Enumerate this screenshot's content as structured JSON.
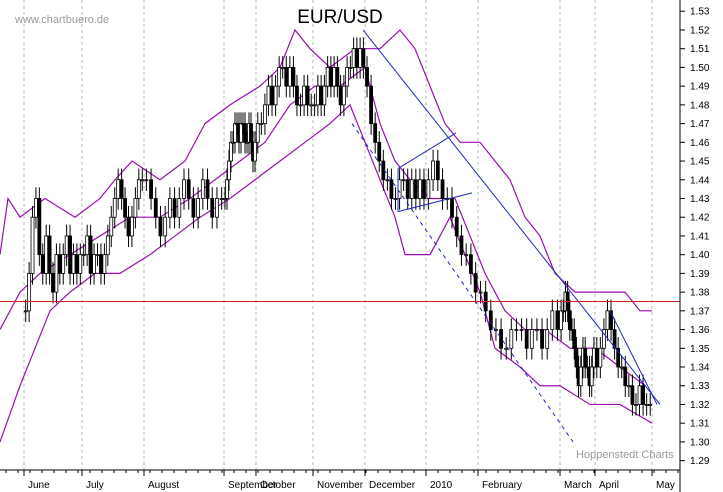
{
  "site_label": "www.chartbuero.de",
  "credit": "Hoppenstedt Charts",
  "chart_data": {
    "type": "candlestick",
    "title": "EUR/USD",
    "x_tick_labels": [
      "June",
      "July",
      "August",
      "September",
      "October",
      "November",
      "December",
      "2010",
      "February",
      "March",
      "April",
      "May"
    ],
    "y_tick_labels": [
      "1.29",
      "1.30",
      "1.31",
      "1.32",
      "1.33",
      "1.34",
      "1.35",
      "1.36",
      "1.37",
      "1.38",
      "1.39",
      "1.40",
      "1.41",
      "1.42",
      "1.43",
      "1.44",
      "1.45",
      "1.46",
      "1.47",
      "1.48",
      "1.49",
      "1.50",
      "1.51",
      "1.52",
      "1.53"
    ],
    "ylim": [
      1.285,
      1.536
    ],
    "grid": "vertical dashed at month boundaries",
    "colors": {
      "price": "#000000",
      "bollinger_bands": "#9a0fb0",
      "trend_lines": "#1f2bb8",
      "horizontal_line": "#d21f1f",
      "grid": "#b8b8b8"
    },
    "horizontal_line": 1.375,
    "months": [
      {
        "label": "June",
        "o": 1.377,
        "c": 1.401,
        "closes": [
          1.37,
          1.39,
          1.42,
          1.43,
          1.4,
          1.39,
          1.41,
          1.39,
          1.38,
          1.4,
          1.39,
          1.4,
          1.41,
          1.39,
          1.4,
          1.39,
          1.4
        ]
      },
      {
        "label": "July",
        "o": 1.401,
        "c": 1.414,
        "closes": [
          1.4,
          1.41,
          1.39,
          1.4,
          1.4,
          1.39,
          1.4,
          1.41,
          1.42,
          1.43,
          1.44,
          1.43,
          1.42,
          1.41,
          1.42,
          1.43,
          1.44,
          1.44
        ]
      },
      {
        "label": "August",
        "o": 1.414,
        "c": 1.432,
        "closes": [
          1.44,
          1.43,
          1.42,
          1.41,
          1.42,
          1.43,
          1.42,
          1.43,
          1.44,
          1.43,
          1.42,
          1.43,
          1.44,
          1.43,
          1.42,
          1.43,
          1.43
        ]
      },
      {
        "label": "September",
        "o": 1.432,
        "c": 1.466,
        "closes": [
          1.43,
          1.44,
          1.45,
          1.46,
          1.46,
          1.47,
          1.47,
          1.46,
          1.47,
          1.47,
          1.46,
          1.46,
          1.47,
          1.46,
          1.45,
          1.46
        ]
      },
      {
        "label": "October",
        "o": 1.466,
        "c": 1.485,
        "closes": [
          1.47,
          1.47,
          1.48,
          1.49,
          1.48,
          1.49,
          1.5,
          1.5,
          1.49,
          1.5,
          1.49,
          1.48,
          1.48,
          1.49,
          1.48,
          1.48
        ]
      },
      {
        "label": "November",
        "o": 1.485,
        "c": 1.5,
        "closes": [
          1.48,
          1.49,
          1.48,
          1.49,
          1.5,
          1.49,
          1.5,
          1.49,
          1.48,
          1.49,
          1.5,
          1.5,
          1.51,
          1.5,
          1.51,
          1.5
        ]
      },
      {
        "label": "December",
        "o": 1.5,
        "c": 1.432,
        "closes": [
          1.49,
          1.47,
          1.46,
          1.45,
          1.44,
          1.44,
          1.43,
          1.43,
          1.44,
          1.44,
          1.43,
          1.44,
          1.43,
          1.44,
          1.43
        ]
      },
      {
        "label": "2010",
        "o": 1.432,
        "c": 1.386,
        "closes": [
          1.44,
          1.45,
          1.44,
          1.43,
          1.43,
          1.42,
          1.41,
          1.4,
          1.4,
          1.39,
          1.38
        ]
      },
      {
        "label": "February",
        "o": 1.386,
        "c": 1.362,
        "closes": [
          1.38,
          1.37,
          1.36,
          1.36,
          1.35,
          1.35,
          1.36,
          1.36,
          1.36,
          1.35,
          1.36,
          1.36,
          1.35,
          1.36,
          1.37,
          1.36
        ]
      },
      {
        "label": "March",
        "o": 1.362,
        "c": 1.349,
        "closes": [
          1.37,
          1.37,
          1.38,
          1.37,
          1.36,
          1.36,
          1.35,
          1.34,
          1.33,
          1.34,
          1.35,
          1.34,
          1.34,
          1.33,
          1.34,
          1.35
        ]
      },
      {
        "label": "April",
        "o": 1.349,
        "c": 1.322,
        "closes": [
          1.34,
          1.35,
          1.36,
          1.37,
          1.36,
          1.35,
          1.34,
          1.34,
          1.33,
          1.33,
          1.32,
          1.32,
          1.33,
          1.32,
          1.32,
          1.32
        ]
      }
    ],
    "upper_band": [
      [
        0,
        1.4
      ],
      [
        8,
        1.43
      ],
      [
        20,
        1.42
      ],
      [
        45,
        1.43
      ],
      [
        75,
        1.42
      ],
      [
        100,
        1.43
      ],
      [
        115,
        1.44
      ],
      [
        132,
        1.45
      ],
      [
        160,
        1.44
      ],
      [
        185,
        1.45
      ],
      [
        205,
        1.47
      ],
      [
        230,
        1.48
      ],
      [
        260,
        1.49
      ],
      [
        280,
        1.5
      ],
      [
        295,
        1.52
      ],
      [
        310,
        1.51
      ],
      [
        330,
        1.5
      ],
      [
        355,
        1.51
      ],
      [
        380,
        1.51
      ],
      [
        400,
        1.52
      ],
      [
        415,
        1.51
      ],
      [
        430,
        1.49
      ],
      [
        445,
        1.47
      ],
      [
        460,
        1.46
      ],
      [
        480,
        1.46
      ],
      [
        495,
        1.45
      ],
      [
        510,
        1.44
      ],
      [
        525,
        1.42
      ],
      [
        540,
        1.41
      ],
      [
        555,
        1.39
      ],
      [
        575,
        1.38
      ],
      [
        600,
        1.38
      ],
      [
        625,
        1.38
      ],
      [
        640,
        1.37
      ],
      [
        652,
        1.37
      ]
    ],
    "lower_band": [
      [
        0,
        1.3
      ],
      [
        20,
        1.33
      ],
      [
        35,
        1.35
      ],
      [
        50,
        1.37
      ],
      [
        70,
        1.38
      ],
      [
        95,
        1.39
      ],
      [
        120,
        1.39
      ],
      [
        150,
        1.4
      ],
      [
        175,
        1.41
      ],
      [
        200,
        1.42
      ],
      [
        230,
        1.43
      ],
      [
        255,
        1.44
      ],
      [
        280,
        1.45
      ],
      [
        305,
        1.46
      ],
      [
        330,
        1.47
      ],
      [
        350,
        1.48
      ],
      [
        365,
        1.46
      ],
      [
        380,
        1.44
      ],
      [
        395,
        1.42
      ],
      [
        405,
        1.4
      ],
      [
        430,
        1.4
      ],
      [
        450,
        1.42
      ],
      [
        465,
        1.4
      ],
      [
        480,
        1.38
      ],
      [
        495,
        1.35
      ],
      [
        520,
        1.34
      ],
      [
        540,
        1.33
      ],
      [
        560,
        1.33
      ],
      [
        590,
        1.32
      ],
      [
        620,
        1.32
      ],
      [
        652,
        1.31
      ]
    ],
    "middle_band": [
      [
        0,
        1.36
      ],
      [
        20,
        1.38
      ],
      [
        40,
        1.39
      ],
      [
        70,
        1.4
      ],
      [
        100,
        1.41
      ],
      [
        130,
        1.42
      ],
      [
        160,
        1.42
      ],
      [
        190,
        1.43
      ],
      [
        215,
        1.44
      ],
      [
        240,
        1.45
      ],
      [
        265,
        1.46
      ],
      [
        290,
        1.48
      ],
      [
        315,
        1.49
      ],
      [
        340,
        1.49
      ],
      [
        365,
        1.5
      ],
      [
        380,
        1.47
      ],
      [
        395,
        1.45
      ],
      [
        410,
        1.44
      ],
      [
        430,
        1.43
      ],
      [
        455,
        1.43
      ],
      [
        470,
        1.41
      ],
      [
        485,
        1.39
      ],
      [
        505,
        1.37
      ],
      [
        525,
        1.36
      ],
      [
        545,
        1.36
      ],
      [
        570,
        1.35
      ],
      [
        595,
        1.35
      ],
      [
        620,
        1.34
      ],
      [
        645,
        1.33
      ]
    ],
    "trend_lines": [
      {
        "style": "solid",
        "points": [
          [
            363,
            1.52
          ],
          [
            660,
            1.32
          ]
        ]
      },
      {
        "style": "dashed",
        "points": [
          [
            352,
            1.47
          ],
          [
            573,
            1.3
          ]
        ]
      },
      {
        "style": "solid",
        "points": [
          [
            398,
            1.446
          ],
          [
            456,
            1.465
          ]
        ]
      },
      {
        "style": "solid",
        "points": [
          [
            398,
            1.423
          ],
          [
            472,
            1.433
          ]
        ]
      },
      {
        "style": "solid",
        "points": [
          [
            398,
            1.446
          ],
          [
            398,
            1.423
          ]
        ]
      },
      {
        "style": "solid",
        "points": [
          [
            610,
            1.37
          ],
          [
            657,
            1.32
          ]
        ]
      }
    ]
  }
}
